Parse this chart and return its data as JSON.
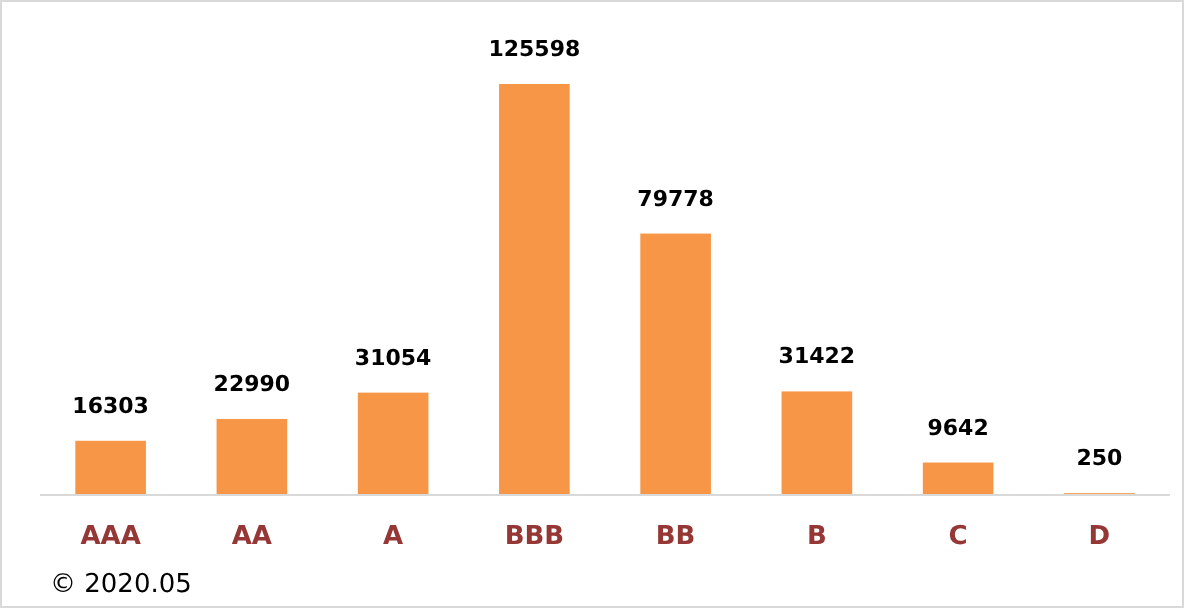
{
  "chart_data": {
    "type": "bar",
    "categories": [
      "AAA",
      "AA",
      "A",
      "BBB",
      "BB",
      "B",
      "C",
      "D"
    ],
    "values": [
      16303,
      22990,
      31054,
      125598,
      79778,
      31422,
      9642,
      250
    ],
    "color": "#f79646",
    "data_labels": true,
    "annotations": [
      "© 2020.05"
    ]
  }
}
